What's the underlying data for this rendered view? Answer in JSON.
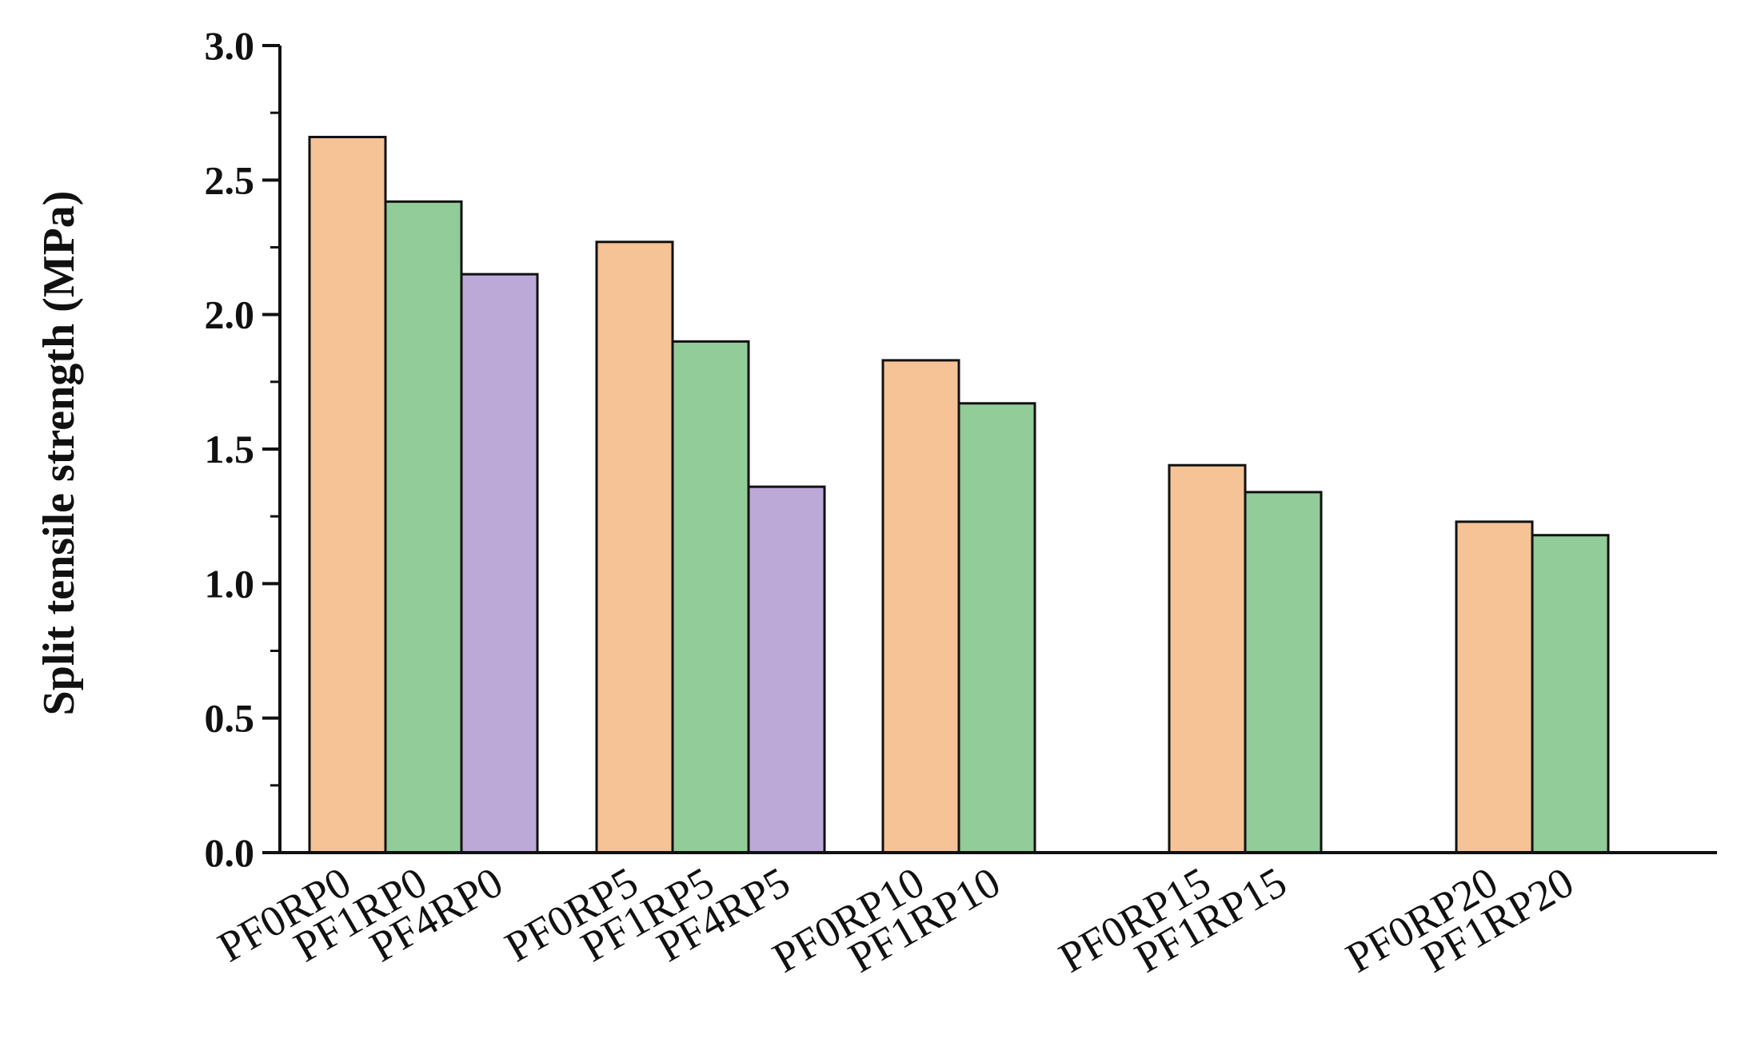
{
  "chart_data": {
    "type": "bar",
    "title": "",
    "xlabel": "",
    "ylabel": "Split tensile strength (MPa)",
    "ylim": [
      0,
      3.0
    ],
    "yticks": [
      "0.0",
      "0.5",
      "1.0",
      "1.5",
      "2.0",
      "2.5",
      "3.0"
    ],
    "grid": false,
    "legend": "none",
    "groups": [
      {
        "bars": [
          {
            "label": "PF0RP0",
            "value": 2.66,
            "color": "#F5C396"
          },
          {
            "label": "PF1RP0",
            "value": 2.42,
            "color": "#92CC98"
          },
          {
            "label": "PF4RP0",
            "value": 2.15,
            "color": "#BCA9D7"
          }
        ]
      },
      {
        "bars": [
          {
            "label": "PF0RP5",
            "value": 2.27,
            "color": "#F5C396"
          },
          {
            "label": "PF1RP5",
            "value": 1.9,
            "color": "#92CC98"
          },
          {
            "label": "PF4RP5",
            "value": 1.36,
            "color": "#BCA9D7"
          }
        ]
      },
      {
        "bars": [
          {
            "label": "PF0RP10",
            "value": 1.83,
            "color": "#F5C396"
          },
          {
            "label": "PF1RP10",
            "value": 1.67,
            "color": "#92CC98"
          }
        ]
      },
      {
        "bars": [
          {
            "label": "PF0RP15",
            "value": 1.44,
            "color": "#F5C396"
          },
          {
            "label": "PF1RP15",
            "value": 1.34,
            "color": "#92CC98"
          }
        ]
      },
      {
        "bars": [
          {
            "label": "PF0RP20",
            "value": 1.23,
            "color": "#F5C396"
          },
          {
            "label": "PF1RP20",
            "value": 1.18,
            "color": "#92CC98"
          }
        ]
      }
    ]
  }
}
